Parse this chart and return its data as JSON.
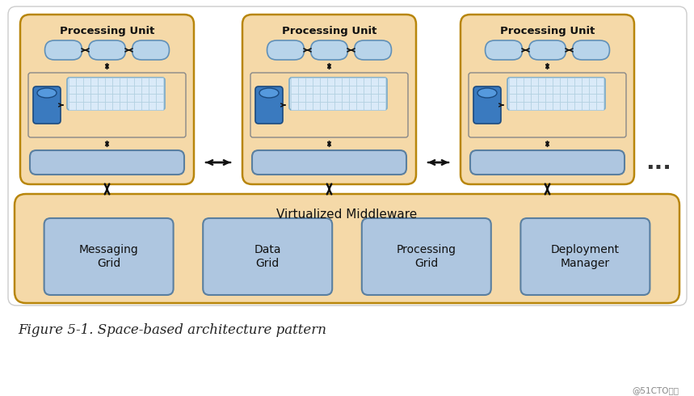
{
  "bg_color": "#ffffff",
  "pu_fill": "#f5d9a8",
  "pu_stroke": "#b8860b",
  "pu_stroke_lw": 1.8,
  "mw_fill": "#f5d9a8",
  "mw_stroke": "#b8860b",
  "blue_fill": "#aec6e0",
  "blue_stroke": "#5a7fa0",
  "pill_fill": "#b8d4ea",
  "pill_stroke": "#6090b8",
  "db_fill_top": "#4488cc",
  "db_fill_bot": "#1a5a9a",
  "grid_cell_fill": "#daeaf8",
  "grid_cell_stroke": "#aaccdd",
  "inner_box_fill": "#f5d9a8",
  "inner_box_stroke": "#888888",
  "arrow_color": "#111111",
  "dots_color": "#333333",
  "caption_text": "Figure 5-1. Space-based architecture pattern",
  "watermark": "@51CTO博客",
  "pu_labels": [
    "Processing Unit",
    "Processing Unit",
    "Processing Unit"
  ],
  "mw_label": "Virtualized Middleware",
  "grid_labels": [
    "Messaging\nGrid",
    "Data\nGrid",
    "Processing\nGrid",
    "Deployment\nManager"
  ],
  "border_color": "#cccccc",
  "border_lw": 1.0
}
